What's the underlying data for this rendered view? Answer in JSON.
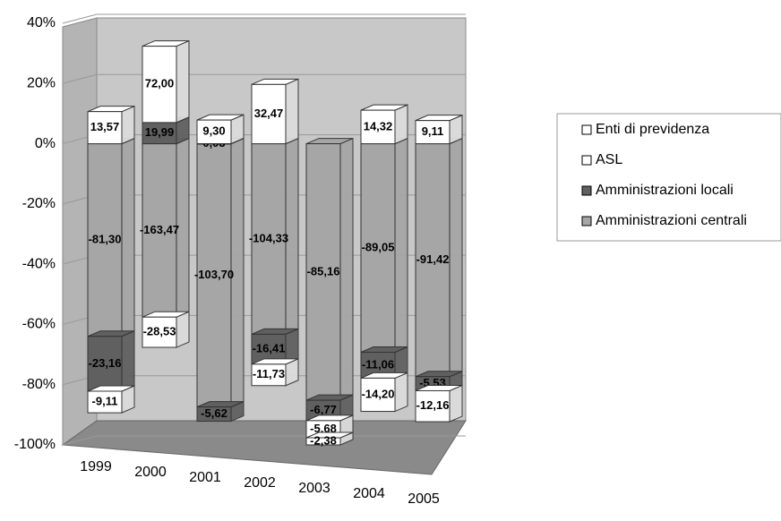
{
  "chart_data": {
    "type": "stacked_percent_bar",
    "categories": [
      "1999",
      "2000",
      "2001",
      "2002",
      "2003",
      "2004",
      "2005"
    ],
    "ylim": [
      -100,
      40
    ],
    "yticks": [
      {
        "value": 40,
        "label": "40%"
      },
      {
        "value": 20,
        "label": "20%"
      },
      {
        "value": 0,
        "label": "0%"
      },
      {
        "value": -20,
        "label": "-20%"
      },
      {
        "value": -40,
        "label": "-40%"
      },
      {
        "value": -60,
        "label": "-60%"
      },
      {
        "value": -80,
        "label": "-80%"
      },
      {
        "value": -100,
        "label": "-100%"
      }
    ],
    "grid": true,
    "legend": "right",
    "series": [
      {
        "name": "Amministrazioni centrali",
        "color": "#a6a6a6",
        "values": [
          -81.3,
          -163.47,
          -103.7,
          -104.33,
          -85.16,
          -89.05,
          -91.42
        ],
        "value_labels": [
          "-81,30",
          "-163,47",
          "-103,70",
          "-104,33",
          "-85,16",
          "-89,05",
          "-91,42"
        ]
      },
      {
        "name": "Amministrazioni locali",
        "color": "#606060",
        "values": [
          -23.16,
          19.99,
          -5.62,
          -16.41,
          -6.77,
          -11.06,
          -5.53
        ],
        "value_labels": [
          "-23,16",
          "19,99",
          "-5,62",
          "-16,41",
          "-6,77",
          "-11,06",
          "-5,53"
        ]
      },
      {
        "name": "ASL",
        "color": "#ffffff",
        "values": [
          -9.11,
          -28.53,
          0.03,
          -11.73,
          -5.68,
          -14.2,
          -12.16
        ],
        "value_labels": [
          "-9,11",
          "-28,53",
          "0,03",
          "-11,73",
          "-5,68",
          "-14,20",
          "-12,16"
        ]
      },
      {
        "name": "Enti di previdenza",
        "color": "#ffffff",
        "values": [
          13.57,
          72.0,
          9.3,
          32.47,
          -2.38,
          14.32,
          9.11
        ],
        "value_labels": [
          "13,57",
          "72,00",
          "9,30",
          "32,47",
          "-2,38",
          "14,32",
          "9,11"
        ]
      }
    ]
  }
}
